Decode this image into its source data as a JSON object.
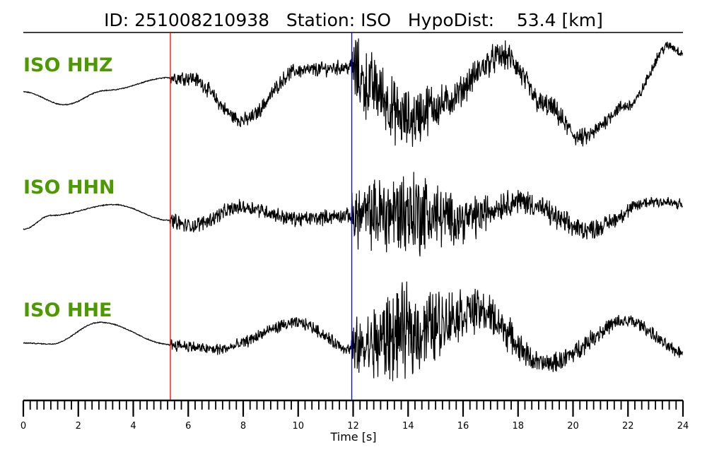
{
  "chart_data": {
    "type": "line",
    "title": "ID: 251008210938   Station: ISO   HypoDist:    53.4 [km]",
    "xlabel": "Time [s]",
    "ylabel": "",
    "xlim": [
      0,
      24
    ],
    "xticks": [
      "0",
      "2",
      "4",
      "6",
      "8",
      "10",
      "12",
      "14",
      "16",
      "18",
      "20",
      "22",
      "24"
    ],
    "minor_tick_step": 0.25,
    "grid": false,
    "picks": [
      {
        "phase": "P",
        "time": 5.35,
        "color": "#ff0000"
      },
      {
        "phase": "S",
        "time": 11.95,
        "color": "#0000ff"
      }
    ],
    "label_color": "#4c9a00",
    "trace_color": "#000000",
    "series": [
      {
        "name": "ISO HHZ",
        "baseline": [
          [
            0,
            0.07
          ],
          [
            1.5,
            -0.19
          ],
          [
            3,
            0.1
          ],
          [
            5.35,
            0.36
          ],
          [
            6,
            0.36
          ],
          [
            8,
            -0.5
          ],
          [
            10,
            0.5
          ],
          [
            11.9,
            0.57
          ],
          [
            12.5,
            0.21
          ],
          [
            14,
            -0.5
          ],
          [
            15,
            -0.21
          ],
          [
            17.5,
            0.79
          ],
          [
            19,
            -0.21
          ],
          [
            20.3,
            -0.86
          ],
          [
            22,
            -0.21
          ],
          [
            23.5,
            1.0
          ],
          [
            24,
            0.86
          ]
        ],
        "noise_envelope": [
          [
            0,
            0.01
          ],
          [
            5.3,
            0.01
          ],
          [
            5.4,
            0.15
          ],
          [
            11.9,
            0.15
          ],
          [
            12,
            0.7
          ],
          [
            14,
            0.6
          ],
          [
            16,
            0.3
          ],
          [
            24,
            0.1
          ]
        ]
      },
      {
        "name": "ISO HHN",
        "baseline": [
          [
            0,
            -0.21
          ],
          [
            1,
            0.07
          ],
          [
            3.3,
            0.29
          ],
          [
            5.35,
            -0.03
          ],
          [
            6,
            -0.14
          ],
          [
            8,
            0.24
          ],
          [
            10,
            0
          ],
          [
            12,
            0.07
          ],
          [
            14,
            0.14
          ],
          [
            16,
            0
          ],
          [
            18,
            0.36
          ],
          [
            20.5,
            -0.21
          ],
          [
            23,
            0.36
          ],
          [
            24,
            0.29
          ]
        ],
        "noise_envelope": [
          [
            0,
            0.01
          ],
          [
            5.3,
            0.01
          ],
          [
            5.4,
            0.15
          ],
          [
            11.9,
            0.15
          ],
          [
            12,
            0.6
          ],
          [
            14,
            0.9
          ],
          [
            16,
            0.45
          ],
          [
            18,
            0.25
          ],
          [
            24,
            0.12
          ]
        ]
      },
      {
        "name": "ISO HHE",
        "baseline": [
          [
            0,
            -0.01
          ],
          [
            1,
            -0.03
          ],
          [
            2.8,
            0.41
          ],
          [
            5.35,
            -0.04
          ],
          [
            7,
            -0.14
          ],
          [
            10,
            0.39
          ],
          [
            12,
            -0.14
          ],
          [
            14,
            0.21
          ],
          [
            16.5,
            0.64
          ],
          [
            19,
            -0.43
          ],
          [
            22,
            0.43
          ],
          [
            24,
            -0.19
          ]
        ],
        "noise_envelope": [
          [
            0,
            0.01
          ],
          [
            5.3,
            0.01
          ],
          [
            5.4,
            0.12
          ],
          [
            11.9,
            0.12
          ],
          [
            12,
            0.6
          ],
          [
            13.5,
            0.9
          ],
          [
            17,
            0.4
          ],
          [
            19,
            0.2
          ],
          [
            24,
            0.12
          ]
        ]
      }
    ]
  }
}
